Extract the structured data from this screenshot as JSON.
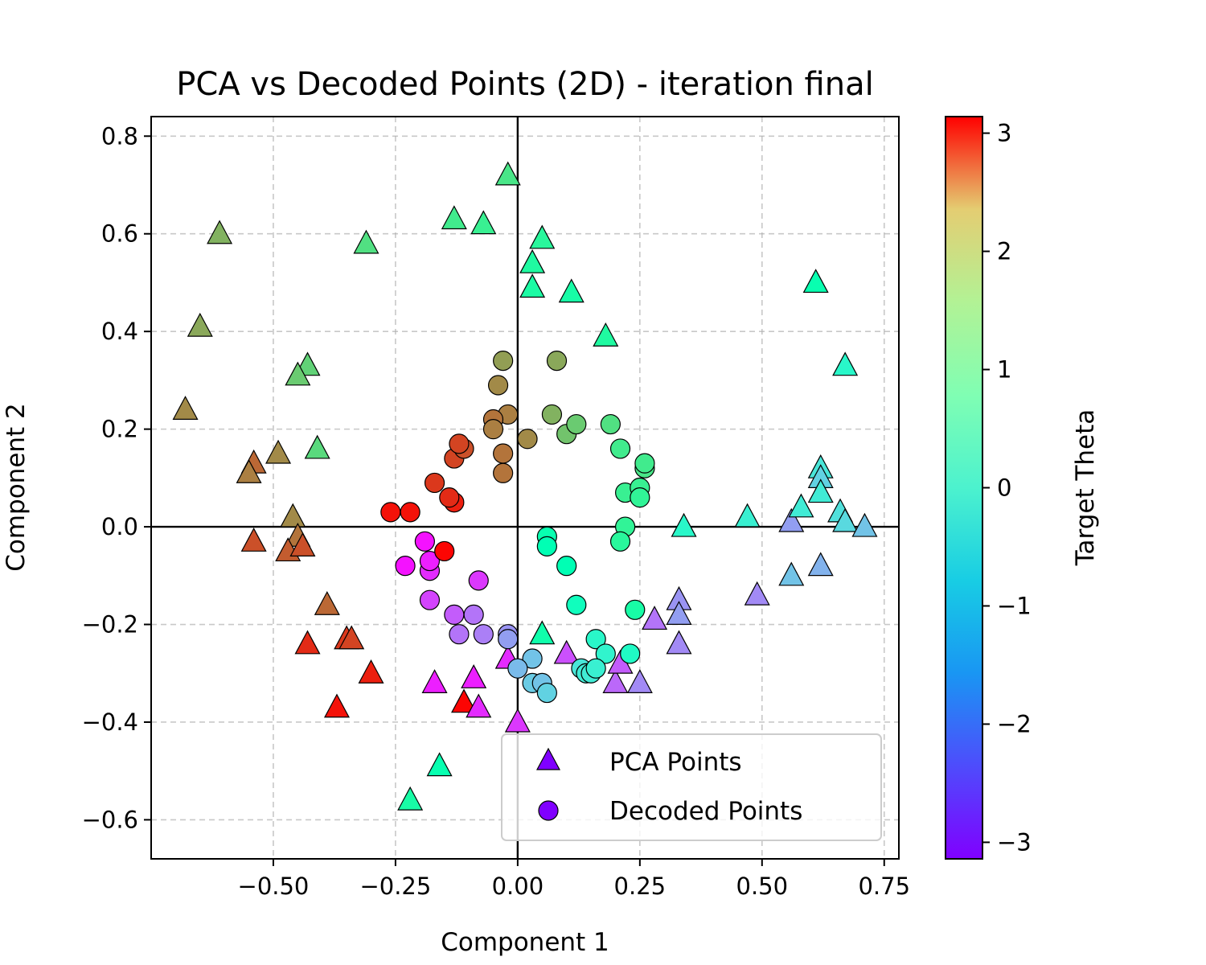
{
  "chart_data": {
    "type": "scatter",
    "title": "PCA vs Decoded Points (2D) - iteration final",
    "xlabel": "Component 1",
    "ylabel": "Component 2",
    "xlim": [
      -0.75,
      0.78
    ],
    "ylim": [
      -0.68,
      0.84
    ],
    "x_ticks": [
      -0.5,
      -0.25,
      0.0,
      0.25,
      0.5,
      0.75
    ],
    "x_tick_labels": [
      "−0.50",
      "−0.25",
      "0.00",
      "0.25",
      "0.50",
      "0.75"
    ],
    "y_ticks": [
      -0.6,
      -0.4,
      -0.2,
      0.0,
      0.2,
      0.4,
      0.6,
      0.8
    ],
    "y_tick_labels": [
      "−0.6",
      "−0.4",
      "−0.2",
      "0.0",
      "0.2",
      "0.4",
      "0.6",
      "0.8"
    ],
    "grid": true,
    "zero_lines": true,
    "legend_position": "lower-right",
    "colormap": "rainbow",
    "colorbar": {
      "label": "Target Theta",
      "min": -3.14,
      "max": 3.14,
      "ticks": [
        -3,
        -2,
        -1,
        0,
        1,
        2,
        3
      ],
      "tick_labels": [
        "−3",
        "−2",
        "−1",
        "0",
        "1",
        "2",
        "3"
      ]
    },
    "series": [
      {
        "name": "PCA Points",
        "marker": "triangle",
        "points": [
          {
            "x": -0.02,
            "y": 0.72,
            "theta": 0.9
          },
          {
            "x": -0.61,
            "y": 0.6,
            "theta": 1.6
          },
          {
            "x": -0.31,
            "y": 0.58,
            "theta": 1.0
          },
          {
            "x": -0.13,
            "y": 0.63,
            "theta": 0.8
          },
          {
            "x": -0.07,
            "y": 0.62,
            "theta": 0.7
          },
          {
            "x": 0.05,
            "y": 0.59,
            "theta": 0.5
          },
          {
            "x": 0.03,
            "y": 0.54,
            "theta": 0.4
          },
          {
            "x": 0.03,
            "y": 0.49,
            "theta": 0.35
          },
          {
            "x": 0.11,
            "y": 0.48,
            "theta": 0.3
          },
          {
            "x": 0.18,
            "y": 0.39,
            "theta": 0.4
          },
          {
            "x": -0.65,
            "y": 0.41,
            "theta": 1.7
          },
          {
            "x": -0.43,
            "y": 0.33,
            "theta": 1.2
          },
          {
            "x": -0.45,
            "y": 0.31,
            "theta": 1.3
          },
          {
            "x": -0.68,
            "y": 0.24,
            "theta": 2.0
          },
          {
            "x": -0.41,
            "y": 0.16,
            "theta": 1.1
          },
          {
            "x": -0.49,
            "y": 0.15,
            "theta": 2.0
          },
          {
            "x": -0.54,
            "y": 0.13,
            "theta": 2.3
          },
          {
            "x": -0.55,
            "y": 0.11,
            "theta": 2.1
          },
          {
            "x": -0.46,
            "y": 0.02,
            "theta": 2.0
          },
          {
            "x": -0.45,
            "y": -0.02,
            "theta": 2.2
          },
          {
            "x": -0.54,
            "y": -0.03,
            "theta": 2.5
          },
          {
            "x": -0.47,
            "y": -0.05,
            "theta": 2.4
          },
          {
            "x": -0.44,
            "y": -0.04,
            "theta": 2.5
          },
          {
            "x": -0.39,
            "y": -0.16,
            "theta": 2.3
          },
          {
            "x": -0.43,
            "y": -0.24,
            "theta": 2.8
          },
          {
            "x": -0.35,
            "y": -0.23,
            "theta": 2.7
          },
          {
            "x": -0.34,
            "y": -0.23,
            "theta": 2.6
          },
          {
            "x": -0.3,
            "y": -0.3,
            "theta": 2.9
          },
          {
            "x": -0.37,
            "y": -0.37,
            "theta": 3.0
          },
          {
            "x": -0.11,
            "y": -0.36,
            "theta": 3.1
          },
          {
            "x": -0.17,
            "y": -0.32,
            "theta": -2.9
          },
          {
            "x": -0.09,
            "y": -0.31,
            "theta": -2.9
          },
          {
            "x": -0.08,
            "y": -0.37,
            "theta": -2.8
          },
          {
            "x": -0.02,
            "y": -0.27,
            "theta": -2.8
          },
          {
            "x": 0.0,
            "y": -0.4,
            "theta": -2.7
          },
          {
            "x": 0.05,
            "y": -0.22,
            "theta": 0.2
          },
          {
            "x": -0.16,
            "y": -0.49,
            "theta": 0.1
          },
          {
            "x": -0.22,
            "y": -0.56,
            "theta": 0.3
          },
          {
            "x": 0.1,
            "y": -0.26,
            "theta": -2.5
          },
          {
            "x": 0.2,
            "y": -0.32,
            "theta": -2.3
          },
          {
            "x": 0.21,
            "y": -0.28,
            "theta": -2.4
          },
          {
            "x": 0.25,
            "y": -0.32,
            "theta": -2.0
          },
          {
            "x": 0.28,
            "y": -0.19,
            "theta": -2.2
          },
          {
            "x": 0.33,
            "y": -0.15,
            "theta": -1.9
          },
          {
            "x": 0.33,
            "y": -0.18,
            "theta": -1.8
          },
          {
            "x": 0.33,
            "y": -0.24,
            "theta": -2.0
          },
          {
            "x": 0.34,
            "y": 0.0,
            "theta": -0.5
          },
          {
            "x": 0.47,
            "y": 0.02,
            "theta": -0.7
          },
          {
            "x": 0.49,
            "y": -0.14,
            "theta": -2.0
          },
          {
            "x": 0.56,
            "y": 0.01,
            "theta": -1.8
          },
          {
            "x": 0.56,
            "y": -0.1,
            "theta": -1.4
          },
          {
            "x": 0.58,
            "y": 0.04,
            "theta": -0.8
          },
          {
            "x": 0.61,
            "y": 0.5,
            "theta": 0.1
          },
          {
            "x": 0.62,
            "y": 0.12,
            "theta": -0.9
          },
          {
            "x": 0.62,
            "y": 0.1,
            "theta": -1.2
          },
          {
            "x": 0.62,
            "y": 0.07,
            "theta": -0.8
          },
          {
            "x": 0.62,
            "y": -0.08,
            "theta": -1.6
          },
          {
            "x": 0.66,
            "y": 0.03,
            "theta": -1.0
          },
          {
            "x": 0.67,
            "y": 0.01,
            "theta": -1.1
          },
          {
            "x": 0.67,
            "y": 0.33,
            "theta": -0.5
          },
          {
            "x": 0.71,
            "y": 0.0,
            "theta": -1.4
          }
        ]
      },
      {
        "name": "Decoded Points",
        "marker": "circle",
        "points": [
          {
            "x": -0.03,
            "y": 0.34,
            "theta": 1.8
          },
          {
            "x": 0.08,
            "y": 0.34,
            "theta": 1.7
          },
          {
            "x": -0.04,
            "y": 0.29,
            "theta": 2.0
          },
          {
            "x": -0.02,
            "y": 0.23,
            "theta": 2.1
          },
          {
            "x": -0.05,
            "y": 0.22,
            "theta": 2.2
          },
          {
            "x": -0.05,
            "y": 0.2,
            "theta": 2.1
          },
          {
            "x": 0.02,
            "y": 0.18,
            "theta": 2.0
          },
          {
            "x": -0.03,
            "y": 0.15,
            "theta": 2.2
          },
          {
            "x": -0.03,
            "y": 0.11,
            "theta": 2.2
          },
          {
            "x": 0.07,
            "y": 0.23,
            "theta": 1.6
          },
          {
            "x": 0.1,
            "y": 0.19,
            "theta": 1.4
          },
          {
            "x": 0.12,
            "y": 0.21,
            "theta": 1.3
          },
          {
            "x": 0.19,
            "y": 0.21,
            "theta": 1.0
          },
          {
            "x": 0.21,
            "y": 0.16,
            "theta": 0.8
          },
          {
            "x": 0.26,
            "y": 0.12,
            "theta": 0.9
          },
          {
            "x": 0.26,
            "y": 0.13,
            "theta": 0.8
          },
          {
            "x": 0.22,
            "y": 0.07,
            "theta": 0.7
          },
          {
            "x": 0.25,
            "y": 0.08,
            "theta": 0.7
          },
          {
            "x": 0.25,
            "y": 0.06,
            "theta": 0.6
          },
          {
            "x": 0.22,
            "y": 0.0,
            "theta": 0.6
          },
          {
            "x": 0.21,
            "y": -0.03,
            "theta": 0.5
          },
          {
            "x": 0.24,
            "y": -0.17,
            "theta": 0.3
          },
          {
            "x": 0.06,
            "y": -0.02,
            "theta": 0.1
          },
          {
            "x": 0.06,
            "y": -0.04,
            "theta": 0.0
          },
          {
            "x": 0.1,
            "y": -0.08,
            "theta": 0.0
          },
          {
            "x": 0.12,
            "y": -0.16,
            "theta": -0.2
          },
          {
            "x": 0.16,
            "y": -0.23,
            "theta": -0.5
          },
          {
            "x": 0.18,
            "y": -0.26,
            "theta": -0.6
          },
          {
            "x": 0.23,
            "y": -0.26,
            "theta": -0.4
          },
          {
            "x": 0.13,
            "y": -0.29,
            "theta": -0.9
          },
          {
            "x": 0.14,
            "y": -0.3,
            "theta": -0.8
          },
          {
            "x": 0.15,
            "y": -0.3,
            "theta": -0.8
          },
          {
            "x": 0.16,
            "y": -0.29,
            "theta": -0.7
          },
          {
            "x": 0.03,
            "y": -0.27,
            "theta": -1.4
          },
          {
            "x": 0.03,
            "y": -0.32,
            "theta": -1.3
          },
          {
            "x": 0.05,
            "y": -0.32,
            "theta": -1.4
          },
          {
            "x": 0.06,
            "y": -0.34,
            "theta": -1.2
          },
          {
            "x": 0.0,
            "y": -0.29,
            "theta": -1.5
          },
          {
            "x": -0.02,
            "y": -0.22,
            "theta": -1.9
          },
          {
            "x": -0.02,
            "y": -0.23,
            "theta": -1.8
          },
          {
            "x": -0.09,
            "y": -0.18,
            "theta": -2.2
          },
          {
            "x": -0.13,
            "y": -0.18,
            "theta": -2.4
          },
          {
            "x": -0.07,
            "y": -0.22,
            "theta": -2.1
          },
          {
            "x": -0.12,
            "y": -0.22,
            "theta": -2.2
          },
          {
            "x": -0.18,
            "y": -0.15,
            "theta": -2.6
          },
          {
            "x": -0.08,
            "y": -0.11,
            "theta": -2.7
          },
          {
            "x": -0.18,
            "y": -0.09,
            "theta": -2.8
          },
          {
            "x": -0.18,
            "y": -0.07,
            "theta": -2.9
          },
          {
            "x": -0.23,
            "y": -0.08,
            "theta": -3.0
          },
          {
            "x": -0.19,
            "y": -0.03,
            "theta": -3.0
          },
          {
            "x": -0.15,
            "y": -0.05,
            "theta": 3.1
          },
          {
            "x": -0.26,
            "y": 0.03,
            "theta": 3.0
          },
          {
            "x": -0.22,
            "y": 0.03,
            "theta": 3.0
          },
          {
            "x": -0.13,
            "y": 0.05,
            "theta": 2.9
          },
          {
            "x": -0.14,
            "y": 0.06,
            "theta": 2.8
          },
          {
            "x": -0.17,
            "y": 0.09,
            "theta": 2.7
          },
          {
            "x": -0.13,
            "y": 0.14,
            "theta": 2.6
          },
          {
            "x": -0.11,
            "y": 0.16,
            "theta": 2.5
          },
          {
            "x": -0.12,
            "y": 0.17,
            "theta": 2.6
          }
        ]
      }
    ]
  }
}
